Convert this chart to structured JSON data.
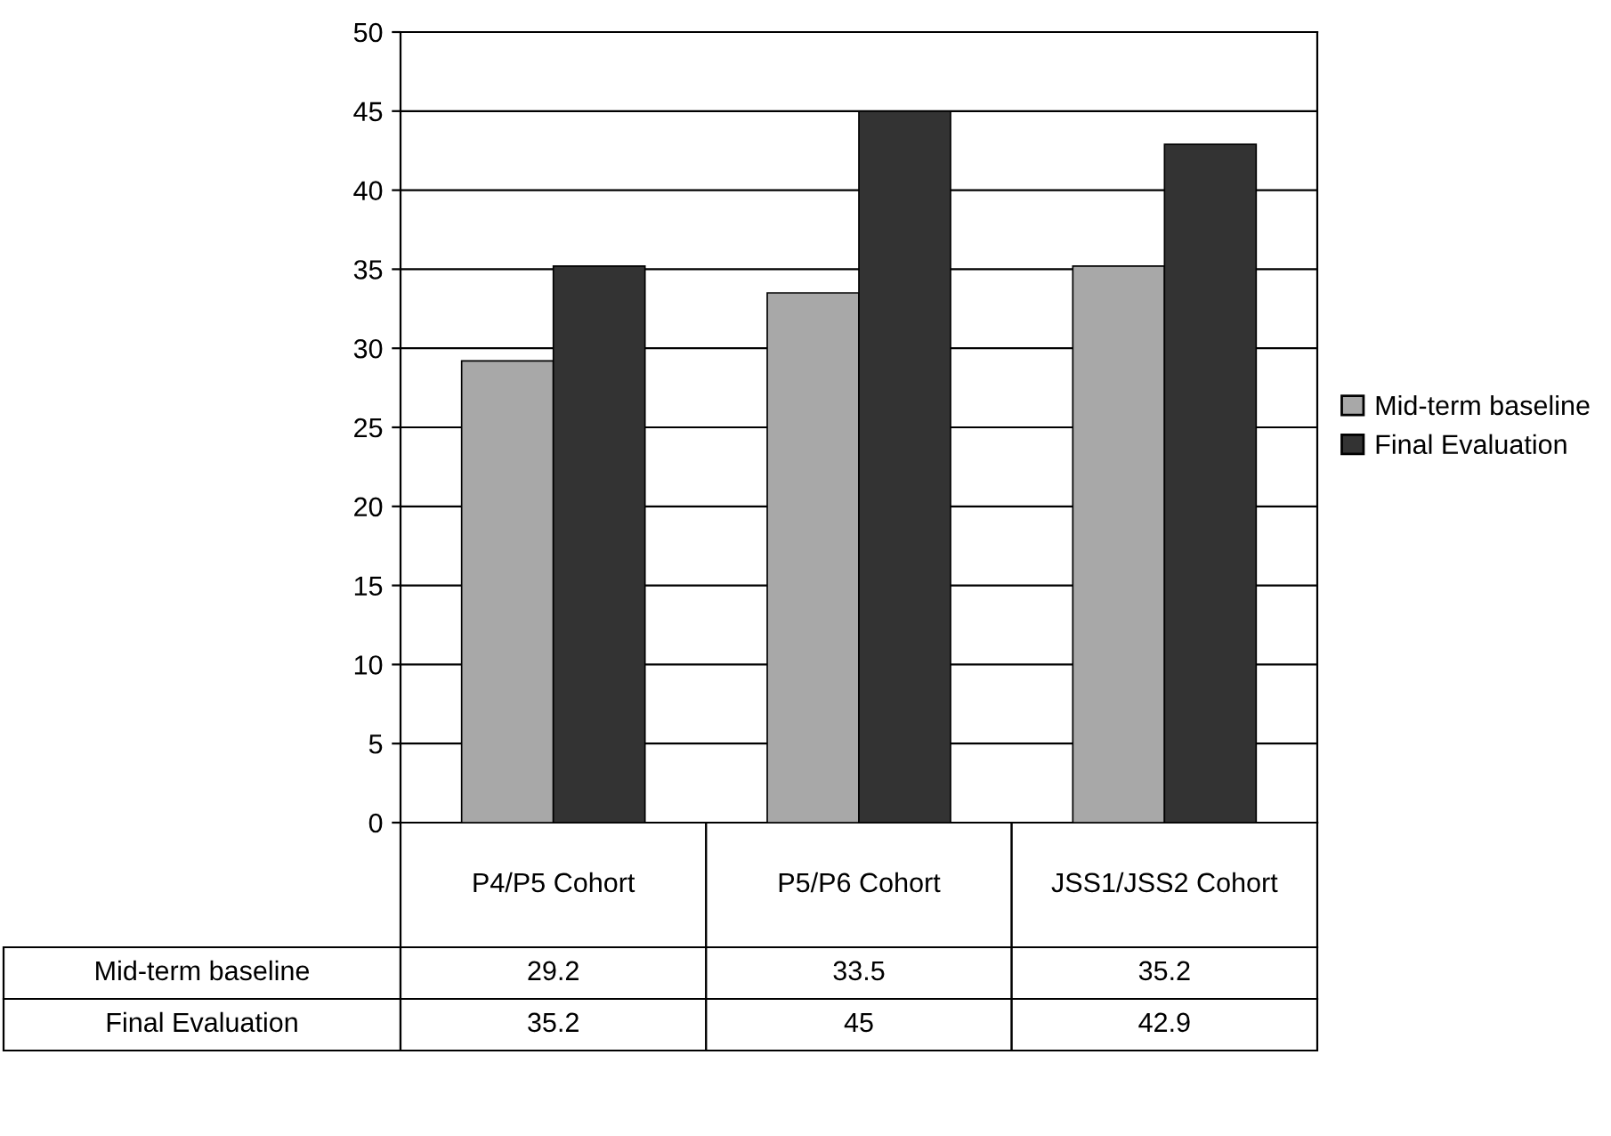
{
  "chart_data": {
    "type": "bar",
    "categories": [
      "P4/P5 Cohort",
      "P5/P6 Cohort",
      "JSS1/JSS2 Cohort"
    ],
    "series": [
      {
        "name": "Mid-term baseline",
        "color": "#a8a8a8",
        "values": [
          29.2,
          33.5,
          35.2
        ]
      },
      {
        "name": "Final Evaluation",
        "color": "#333333",
        "values": [
          35.2,
          45,
          42.9
        ]
      }
    ],
    "ylim": [
      0,
      50
    ],
    "yticks": [
      0,
      5,
      10,
      15,
      20,
      25,
      30,
      35,
      40,
      45,
      50
    ],
    "grid": "y",
    "legend": "right",
    "data_labels": true
  }
}
